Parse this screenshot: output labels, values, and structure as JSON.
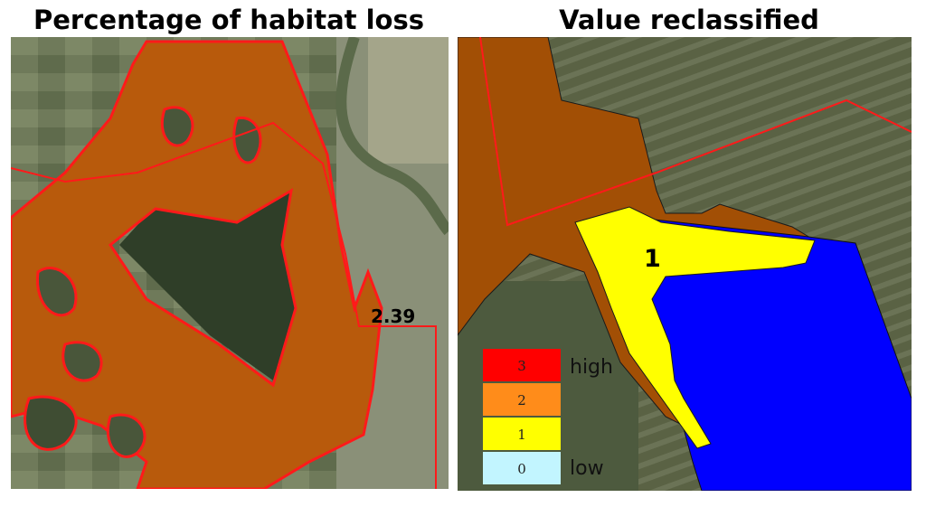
{
  "titles": {
    "left": "Percentage of habitat loss",
    "right": "Value reclassified"
  },
  "left_map": {
    "value_label": "2.39",
    "habitat_fill": "#b85a0c",
    "boundary_color": "#ff1a1a"
  },
  "right_map": {
    "class_label": "1",
    "zones": {
      "habitat": "#a24f05",
      "class_1": "#ffff00",
      "class_0_area": "#0000ff"
    },
    "boundary_color": "#ff1a1a"
  },
  "legend": {
    "items": [
      {
        "value": "3",
        "color": "#ff0000"
      },
      {
        "value": "2",
        "color": "#ff8c1a"
      },
      {
        "value": "1",
        "color": "#ffff00"
      },
      {
        "value": "0",
        "color": "#c2f5ff"
      }
    ],
    "high_label": "high",
    "low_label": "low"
  }
}
